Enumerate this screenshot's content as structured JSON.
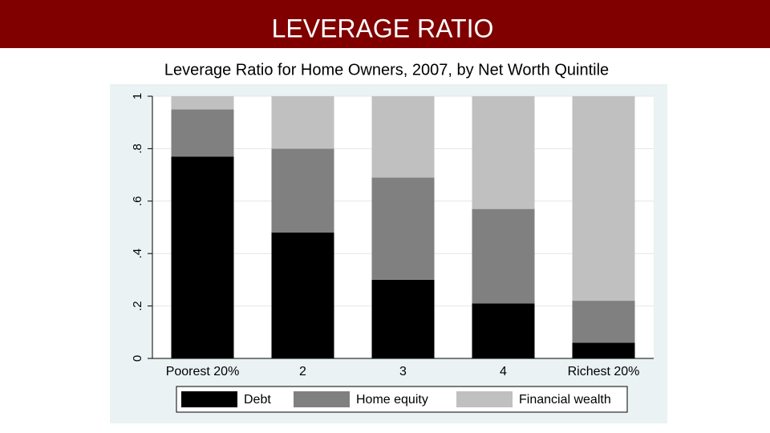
{
  "slide_title": "LEVERAGE RATIO",
  "chart_data": {
    "type": "stacked_bar",
    "title": "Leverage Ratio for Home Owners, 2007, by Net Worth Quintile",
    "categories": [
      "Poorest 20%",
      "2",
      "3",
      "4",
      "Richest 20%"
    ],
    "series": [
      {
        "name": "Debt",
        "color": "#000000",
        "values": [
          0.77,
          0.48,
          0.3,
          0.21,
          0.06
        ]
      },
      {
        "name": "Home equity",
        "color": "#808080",
        "values": [
          0.18,
          0.32,
          0.39,
          0.36,
          0.16
        ]
      },
      {
        "name": "Financial wealth",
        "color": "#c0c0c0",
        "values": [
          0.05,
          0.2,
          0.31,
          0.43,
          0.78
        ]
      }
    ],
    "ylim": [
      0,
      1
    ],
    "yticks": [
      0,
      {
        "value": 0.2,
        "label": ".2"
      },
      {
        "value": 0.4,
        "label": ".4"
      },
      {
        "value": 0.6,
        "label": ".6"
      },
      {
        "value": 0.8,
        "label": ".8"
      },
      1
    ],
    "grid": true,
    "legend": "bottom"
  }
}
